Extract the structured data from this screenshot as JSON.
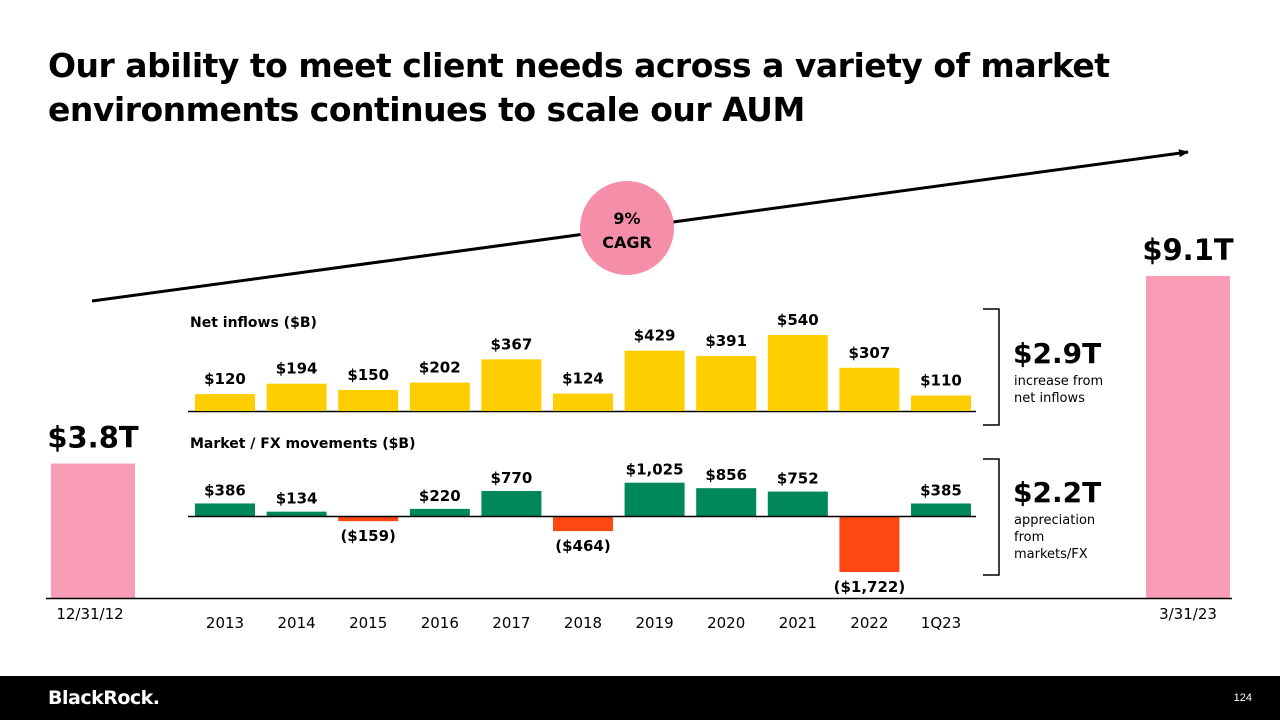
{
  "title": {
    "line1": "Our ability to meet client needs across a variety of market",
    "line2": "environments continues to scale our AUM"
  },
  "chart_data": {
    "type": "bar",
    "categories": [
      "2013",
      "2014",
      "2015",
      "2016",
      "2017",
      "2018",
      "2019",
      "2020",
      "2021",
      "2022",
      "1Q23"
    ],
    "series": [
      {
        "name": "Net inflows ($B)",
        "values": [
          120,
          194,
          150,
          202,
          367,
          124,
          429,
          391,
          540,
          307,
          110
        ],
        "labels": [
          "$120",
          "$194",
          "$150",
          "$202",
          "$367",
          "$124",
          "$429",
          "$391",
          "$540",
          "$307",
          "$110"
        ]
      },
      {
        "name": "Market / FX movements ($B)",
        "values": [
          386,
          134,
          -159,
          220,
          770,
          -464,
          1025,
          856,
          752,
          -1722,
          385
        ],
        "labels": [
          "$386",
          "$134",
          "($159)",
          "$220",
          "$770",
          "($464)",
          "$1,025",
          "$856",
          "$752",
          "($1,722)",
          "$385"
        ]
      }
    ],
    "start": {
      "label": "$3.8T",
      "date": "12/31/12",
      "value": 3.8
    },
    "end": {
      "label": "$9.1T",
      "date": "3/31/23",
      "value": 9.1
    },
    "cagr": {
      "value": "9%",
      "label": "CAGR"
    },
    "summaries": [
      {
        "value": "$2.9T",
        "text": [
          "increase from",
          "net inflows"
        ]
      },
      {
        "value": "$2.2T",
        "text": [
          "appreciation",
          "from",
          "markets/FX"
        ]
      }
    ],
    "colors": {
      "inflow": "#FFCE00",
      "positive": "#00875A",
      "negative": "#FF4713",
      "aum": "#F89DB5",
      "cagr_circle": "#F58EA9"
    }
  },
  "footer": {
    "brand": "BlackRock.",
    "page": "124"
  }
}
